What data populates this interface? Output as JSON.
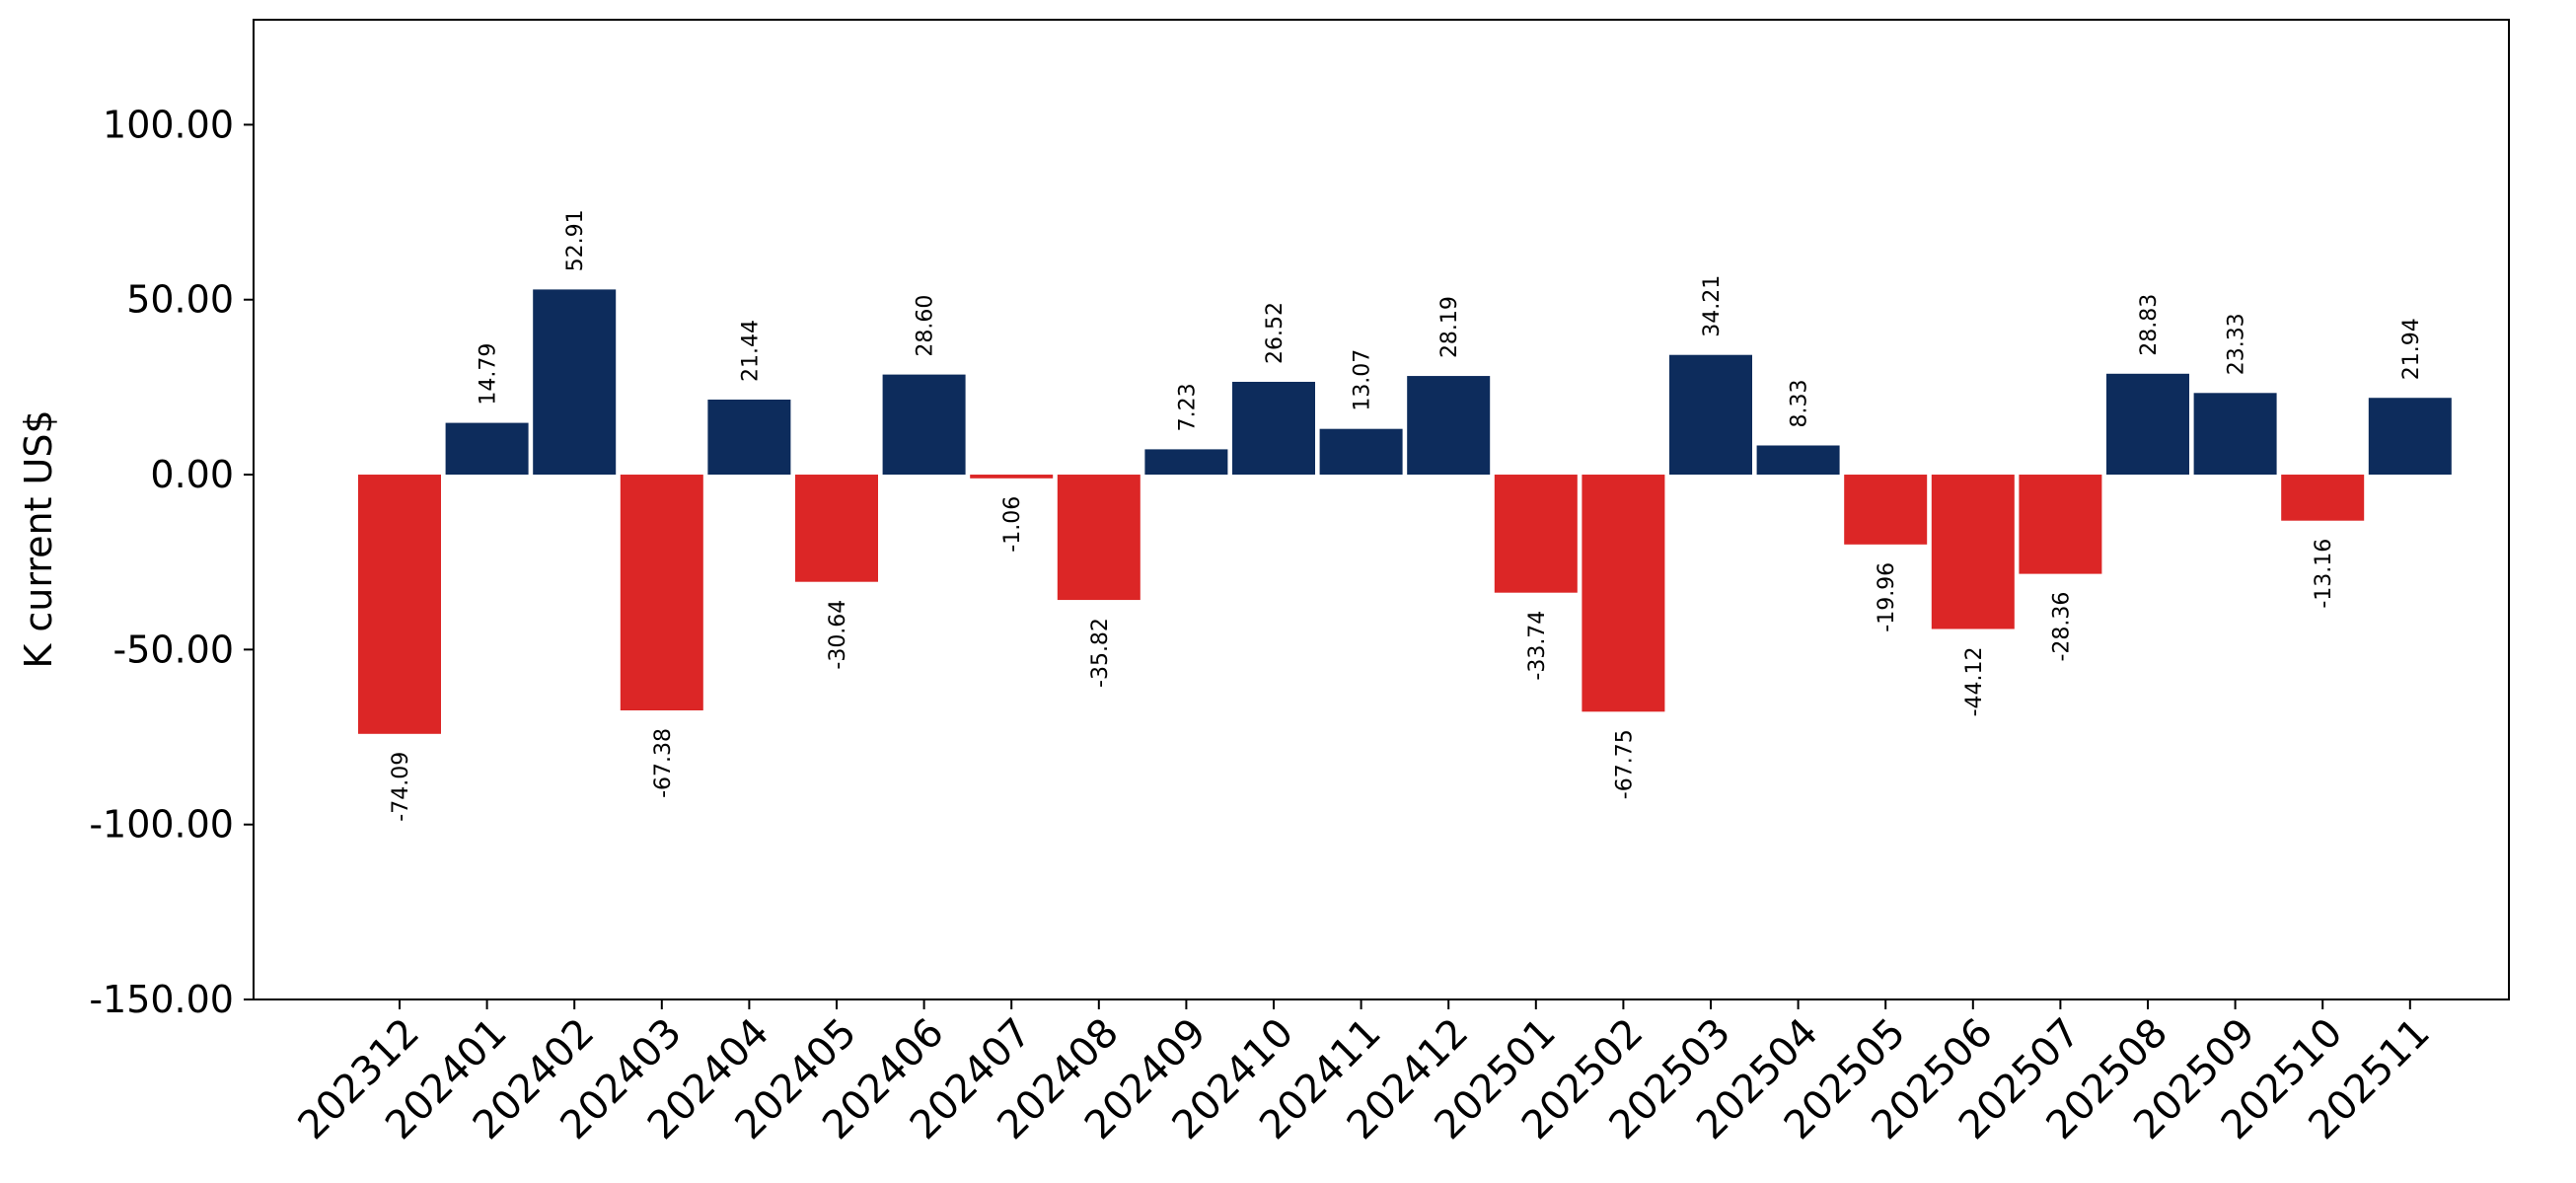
{
  "chart_data": {
    "type": "bar",
    "ylabel": "K current US$",
    "xlabel": "",
    "title": "",
    "ylim": [
      -150,
      130
    ],
    "yticks": [
      -150,
      -100,
      -50,
      0,
      50,
      100
    ],
    "ytick_labels": [
      "-150.00",
      "-100.00",
      "-50.00",
      "0.00",
      "50.00",
      "100.00"
    ],
    "grid": false,
    "positive_color": "#0d2c5c",
    "negative_color": "#dc2626",
    "categories": [
      "202312",
      "202401",
      "202402",
      "202403",
      "202404",
      "202405",
      "202406",
      "202407",
      "202408",
      "202409",
      "202410",
      "202411",
      "202412",
      "202501",
      "202502",
      "202503",
      "202504",
      "202505",
      "202506",
      "202507",
      "202508",
      "202509",
      "202510",
      "202511"
    ],
    "values": [
      -74.09,
      14.79,
      52.91,
      -67.38,
      21.44,
      -30.64,
      28.6,
      -1.06,
      -35.82,
      7.23,
      26.52,
      13.07,
      28.19,
      -33.74,
      -67.75,
      34.21,
      8.33,
      -19.96,
      -44.12,
      -28.36,
      28.83,
      23.33,
      -13.16,
      21.94
    ],
    "value_labels": [
      "-74.09",
      "14.79",
      "52.91",
      "-67.38",
      "21.44",
      "-30.64",
      "28.60",
      "-1.06",
      "-35.82",
      "7.23",
      "26.52",
      "13.07",
      "28.19",
      "-33.74",
      "-67.75",
      "34.21",
      "8.33",
      "-19.96",
      "-44.12",
      "-28.36",
      "28.83",
      "23.33",
      "-13.16",
      "21.94"
    ]
  }
}
